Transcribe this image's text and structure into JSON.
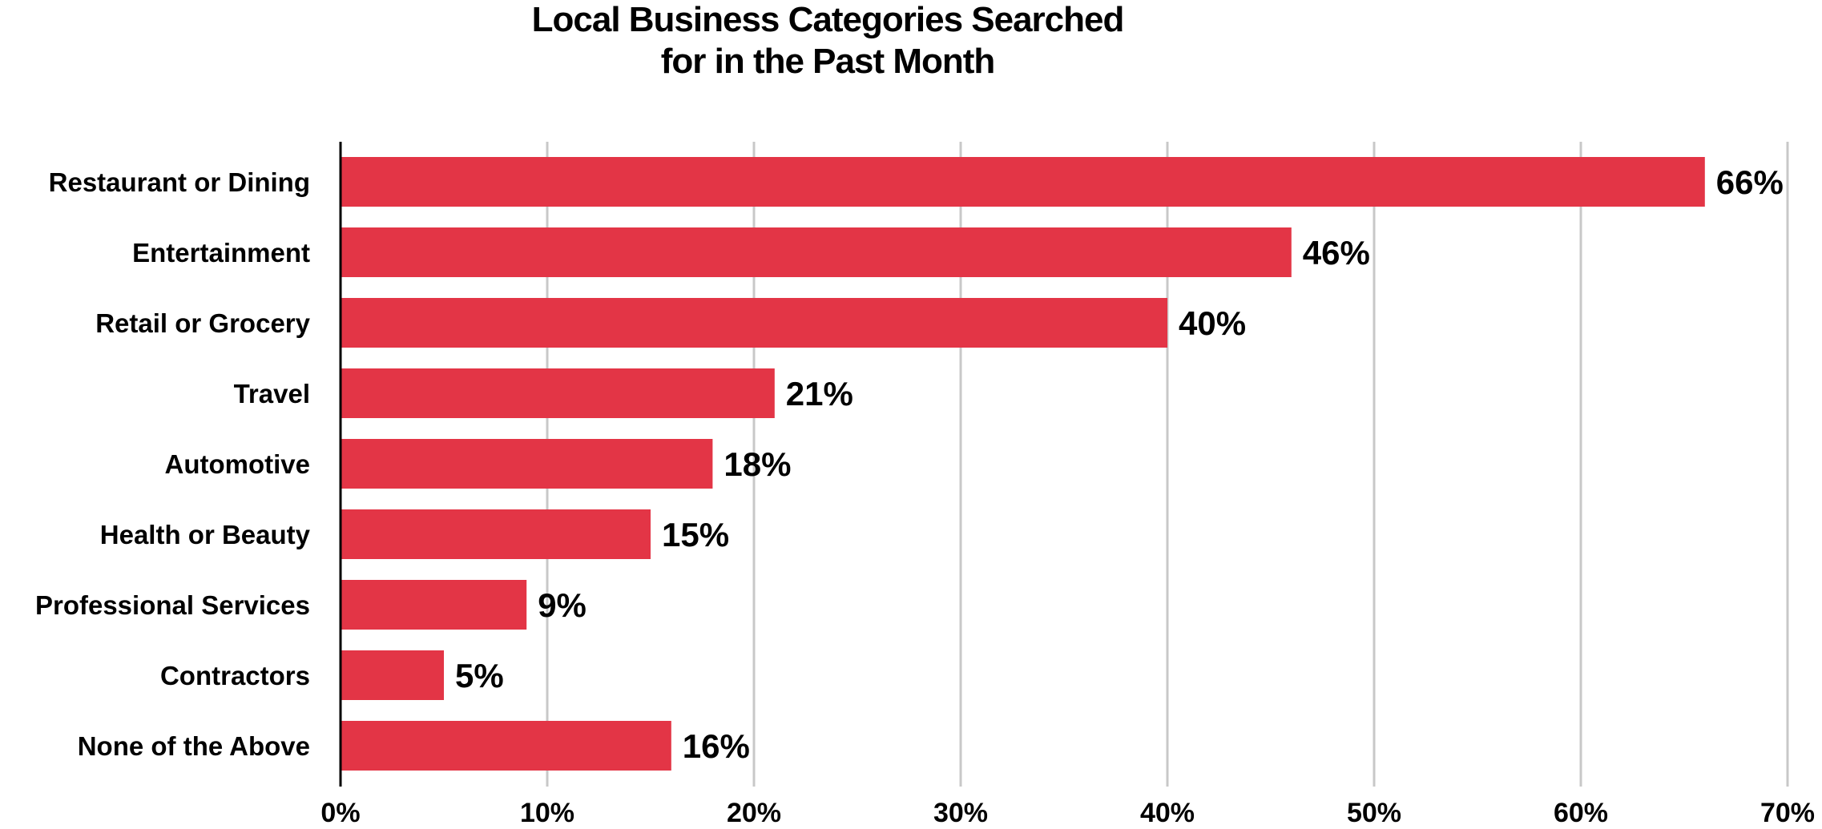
{
  "chart_data": {
    "type": "bar",
    "orientation": "horizontal",
    "title": "Local Business Categories Searched for in the Past Month",
    "title_lines": [
      "Local Business Categories Searched",
      "for in the Past Month"
    ],
    "categories": [
      "Restaurant or Dining",
      "Entertainment",
      "Retail or Grocery",
      "Travel",
      "Automotive",
      "Health or Beauty",
      "Professional Services",
      "Contractors",
      "None of the Above"
    ],
    "values": [
      66,
      46,
      40,
      21,
      18,
      15,
      9,
      5,
      16
    ],
    "value_labels": [
      "66%",
      "46%",
      "40%",
      "21%",
      "18%",
      "15%",
      "9%",
      "5%",
      "16%"
    ],
    "xlim": [
      0,
      70
    ],
    "xticks": [
      0,
      10,
      20,
      30,
      40,
      50,
      60,
      70
    ],
    "xtick_labels": [
      "0%",
      "10%",
      "20%",
      "30%",
      "40%",
      "50%",
      "60%",
      "70%"
    ],
    "xlabel": "",
    "ylabel": "",
    "grid": "vertical",
    "legend": "none",
    "bar_color": "#e33546",
    "grid_color": "#c8c8c8"
  }
}
